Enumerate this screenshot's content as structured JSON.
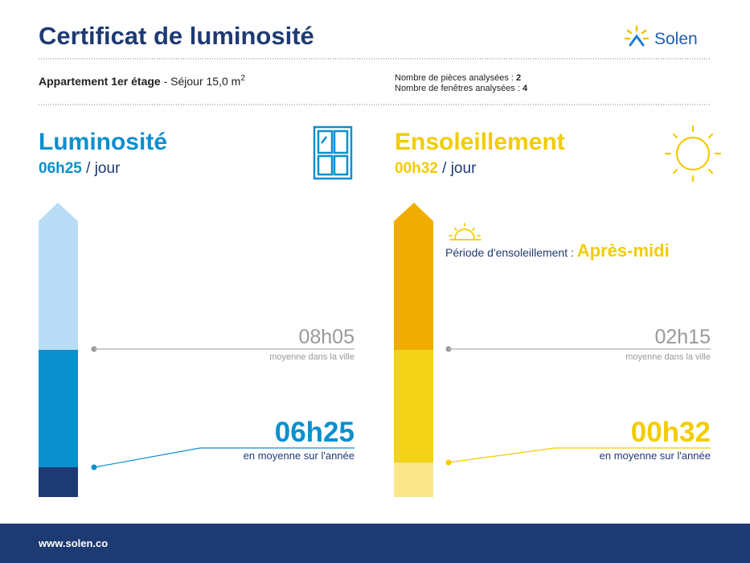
{
  "header": {
    "title": "Certificat de luminosité",
    "brand": "Solen"
  },
  "info": {
    "apartment": "Appartement 1er étage",
    "room": "- Séjour 15,0 m",
    "room_exponent": "2",
    "rooms_label": "Nombre de pièces analysées :",
    "rooms_value": "2",
    "windows_label": "Nombre de fenêtres analysées :",
    "windows_value": "4"
  },
  "luminosity": {
    "title": "Luminosité",
    "daily": "06h25",
    "unit": "/ jour",
    "city_value": "08h05",
    "city_label": "moyenne dans la ville",
    "year_value": "06h25",
    "year_label": "en moyenne sur l'année"
  },
  "sunshine": {
    "title": "Ensoleillement",
    "daily": "00h32",
    "unit": "/ jour",
    "period_label": "Période d'ensoleillement :",
    "period_value": "Après-midi",
    "city_value": "02h15",
    "city_label": "moyenne dans la ville",
    "year_value": "00h32",
    "year_label": "en moyenne sur l'année"
  },
  "footer": {
    "url": "www.solen.co"
  }
}
